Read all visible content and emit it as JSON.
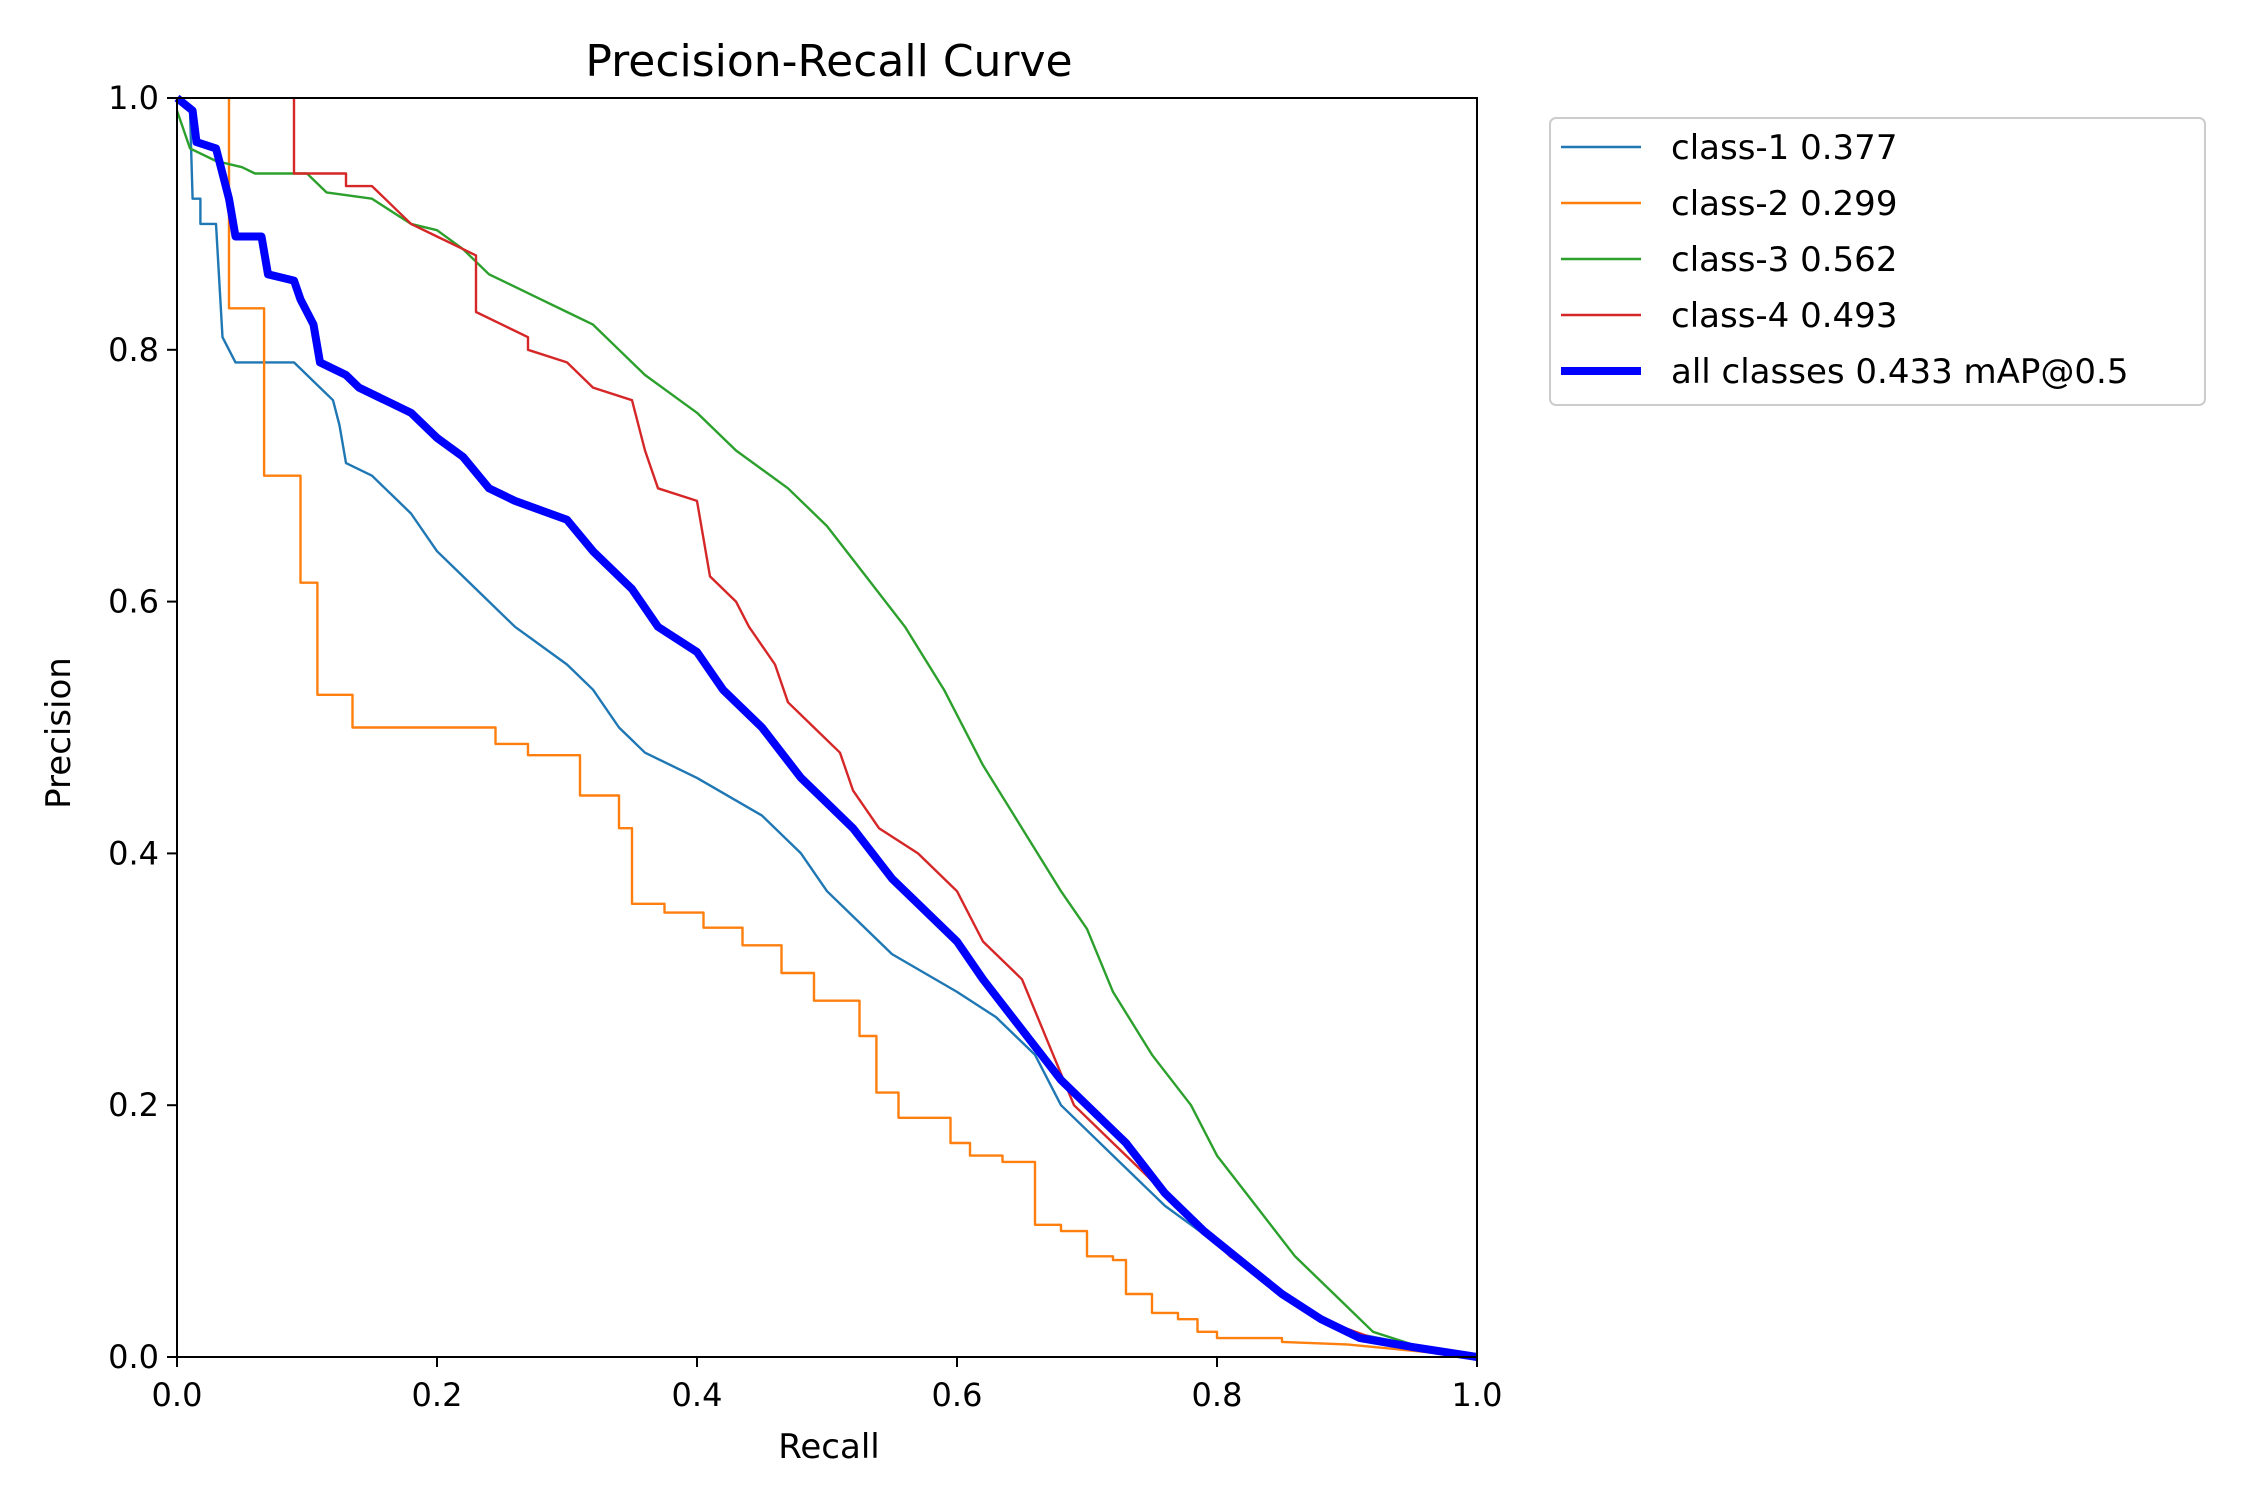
{
  "chart_data": {
    "type": "line",
    "title": "Precision-Recall Curve",
    "xlabel": "Recall",
    "ylabel": "Precision",
    "xlim": [
      0,
      1
    ],
    "ylim": [
      0,
      1
    ],
    "xticks": [
      "0.0",
      "0.2",
      "0.4",
      "0.6",
      "0.8",
      "1.0"
    ],
    "yticks": [
      "0.0",
      "0.2",
      "0.4",
      "0.6",
      "0.8",
      "1.0"
    ],
    "grid": false,
    "legend_position": "outside-top-right",
    "series": [
      {
        "name": "class-1 0.377",
        "color": "#1f77b4",
        "points": [
          [
            0,
            1.0
          ],
          [
            0.01,
            0.99
          ],
          [
            0.012,
            0.92
          ],
          [
            0.018,
            0.92
          ],
          [
            0.018,
            0.9
          ],
          [
            0.03,
            0.9
          ],
          [
            0.035,
            0.81
          ],
          [
            0.045,
            0.79
          ],
          [
            0.09,
            0.79
          ],
          [
            0.1,
            0.78
          ],
          [
            0.11,
            0.77
          ],
          [
            0.12,
            0.76
          ],
          [
            0.125,
            0.74
          ],
          [
            0.13,
            0.71
          ],
          [
            0.15,
            0.7
          ],
          [
            0.16,
            0.69
          ],
          [
            0.17,
            0.68
          ],
          [
            0.18,
            0.67
          ],
          [
            0.2,
            0.64
          ],
          [
            0.22,
            0.62
          ],
          [
            0.24,
            0.6
          ],
          [
            0.26,
            0.58
          ],
          [
            0.3,
            0.55
          ],
          [
            0.32,
            0.53
          ],
          [
            0.34,
            0.5
          ],
          [
            0.36,
            0.48
          ],
          [
            0.4,
            0.46
          ],
          [
            0.45,
            0.43
          ],
          [
            0.48,
            0.4
          ],
          [
            0.5,
            0.37
          ],
          [
            0.52,
            0.35
          ],
          [
            0.55,
            0.32
          ],
          [
            0.6,
            0.29
          ],
          [
            0.63,
            0.27
          ],
          [
            0.66,
            0.24
          ],
          [
            0.68,
            0.2
          ],
          [
            0.72,
            0.16
          ],
          [
            0.76,
            0.12
          ],
          [
            0.8,
            0.09
          ],
          [
            0.85,
            0.05
          ],
          [
            0.9,
            0.02
          ],
          [
            0.95,
            0.01
          ],
          [
            1.0,
            0.0
          ]
        ]
      },
      {
        "name": "class-2 0.299",
        "color": "#ff7f0e",
        "points": [
          [
            0.04,
            1.0
          ],
          [
            0.04,
            0.833
          ],
          [
            0.067,
            0.833
          ],
          [
            0.067,
            0.7
          ],
          [
            0.095,
            0.7
          ],
          [
            0.095,
            0.615
          ],
          [
            0.108,
            0.615
          ],
          [
            0.108,
            0.526
          ],
          [
            0.135,
            0.526
          ],
          [
            0.135,
            0.5
          ],
          [
            0.245,
            0.5
          ],
          [
            0.245,
            0.487
          ],
          [
            0.27,
            0.487
          ],
          [
            0.27,
            0.478
          ],
          [
            0.31,
            0.478
          ],
          [
            0.31,
            0.446
          ],
          [
            0.34,
            0.446
          ],
          [
            0.34,
            0.42
          ],
          [
            0.35,
            0.42
          ],
          [
            0.35,
            0.36
          ],
          [
            0.375,
            0.36
          ],
          [
            0.375,
            0.353
          ],
          [
            0.405,
            0.353
          ],
          [
            0.405,
            0.341
          ],
          [
            0.435,
            0.341
          ],
          [
            0.435,
            0.327
          ],
          [
            0.465,
            0.327
          ],
          [
            0.465,
            0.305
          ],
          [
            0.49,
            0.305
          ],
          [
            0.49,
            0.283
          ],
          [
            0.525,
            0.283
          ],
          [
            0.525,
            0.255
          ],
          [
            0.538,
            0.255
          ],
          [
            0.538,
            0.21
          ],
          [
            0.555,
            0.21
          ],
          [
            0.555,
            0.19
          ],
          [
            0.595,
            0.19
          ],
          [
            0.595,
            0.17
          ],
          [
            0.61,
            0.17
          ],
          [
            0.61,
            0.16
          ],
          [
            0.635,
            0.16
          ],
          [
            0.635,
            0.155
          ],
          [
            0.66,
            0.155
          ],
          [
            0.66,
            0.105
          ],
          [
            0.68,
            0.105
          ],
          [
            0.68,
            0.1
          ],
          [
            0.7,
            0.1
          ],
          [
            0.7,
            0.08
          ],
          [
            0.72,
            0.08
          ],
          [
            0.72,
            0.077
          ],
          [
            0.73,
            0.077
          ],
          [
            0.73,
            0.05
          ],
          [
            0.75,
            0.05
          ],
          [
            0.75,
            0.035
          ],
          [
            0.77,
            0.035
          ],
          [
            0.77,
            0.03
          ],
          [
            0.785,
            0.03
          ],
          [
            0.785,
            0.02
          ],
          [
            0.8,
            0.02
          ],
          [
            0.8,
            0.015
          ],
          [
            0.85,
            0.015
          ],
          [
            0.85,
            0.012
          ],
          [
            0.9,
            0.01
          ],
          [
            0.95,
            0.005
          ],
          [
            1.0,
            0.0
          ]
        ]
      },
      {
        "name": "class-3 0.562",
        "color": "#2ca02c",
        "points": [
          [
            0,
            0.99
          ],
          [
            0.01,
            0.96
          ],
          [
            0.03,
            0.95
          ],
          [
            0.05,
            0.945
          ],
          [
            0.06,
            0.94
          ],
          [
            0.1,
            0.94
          ],
          [
            0.115,
            0.925
          ],
          [
            0.15,
            0.92
          ],
          [
            0.18,
            0.9
          ],
          [
            0.2,
            0.895
          ],
          [
            0.22,
            0.88
          ],
          [
            0.24,
            0.86
          ],
          [
            0.28,
            0.84
          ],
          [
            0.3,
            0.83
          ],
          [
            0.32,
            0.82
          ],
          [
            0.34,
            0.8
          ],
          [
            0.36,
            0.78
          ],
          [
            0.4,
            0.75
          ],
          [
            0.43,
            0.72
          ],
          [
            0.47,
            0.69
          ],
          [
            0.5,
            0.66
          ],
          [
            0.53,
            0.62
          ],
          [
            0.56,
            0.58
          ],
          [
            0.59,
            0.53
          ],
          [
            0.62,
            0.47
          ],
          [
            0.65,
            0.42
          ],
          [
            0.68,
            0.37
          ],
          [
            0.7,
            0.34
          ],
          [
            0.72,
            0.29
          ],
          [
            0.75,
            0.24
          ],
          [
            0.78,
            0.2
          ],
          [
            0.8,
            0.16
          ],
          [
            0.83,
            0.12
          ],
          [
            0.86,
            0.08
          ],
          [
            0.89,
            0.05
          ],
          [
            0.92,
            0.02
          ],
          [
            0.95,
            0.01
          ],
          [
            1.0,
            0.0
          ]
        ]
      },
      {
        "name": "class-4 0.493",
        "color": "#d62728",
        "points": [
          [
            0.09,
            1.0
          ],
          [
            0.09,
            0.94
          ],
          [
            0.13,
            0.94
          ],
          [
            0.13,
            0.93
          ],
          [
            0.15,
            0.93
          ],
          [
            0.16,
            0.92
          ],
          [
            0.17,
            0.91
          ],
          [
            0.18,
            0.9
          ],
          [
            0.2,
            0.89
          ],
          [
            0.22,
            0.88
          ],
          [
            0.23,
            0.875
          ],
          [
            0.23,
            0.83
          ],
          [
            0.25,
            0.82
          ],
          [
            0.27,
            0.81
          ],
          [
            0.27,
            0.8
          ],
          [
            0.3,
            0.79
          ],
          [
            0.32,
            0.77
          ],
          [
            0.35,
            0.76
          ],
          [
            0.36,
            0.72
          ],
          [
            0.37,
            0.69
          ],
          [
            0.4,
            0.68
          ],
          [
            0.41,
            0.62
          ],
          [
            0.43,
            0.6
          ],
          [
            0.44,
            0.58
          ],
          [
            0.46,
            0.55
          ],
          [
            0.47,
            0.52
          ],
          [
            0.49,
            0.5
          ],
          [
            0.51,
            0.48
          ],
          [
            0.52,
            0.45
          ],
          [
            0.54,
            0.42
          ],
          [
            0.57,
            0.4
          ],
          [
            0.6,
            0.37
          ],
          [
            0.62,
            0.33
          ],
          [
            0.65,
            0.3
          ],
          [
            0.67,
            0.25
          ],
          [
            0.69,
            0.2
          ],
          [
            0.72,
            0.17
          ],
          [
            0.75,
            0.14
          ],
          [
            0.78,
            0.11
          ],
          [
            0.81,
            0.08
          ],
          [
            0.85,
            0.05
          ],
          [
            0.88,
            0.03
          ],
          [
            0.92,
            0.015
          ],
          [
            0.96,
            0.005
          ],
          [
            1.0,
            0.0
          ]
        ]
      },
      {
        "name": "all classes 0.433 mAP@0.5",
        "color": "#0000ff",
        "thick": true,
        "points": [
          [
            0,
            1.0
          ],
          [
            0.012,
            0.99
          ],
          [
            0.015,
            0.965
          ],
          [
            0.03,
            0.96
          ],
          [
            0.035,
            0.94
          ],
          [
            0.04,
            0.92
          ],
          [
            0.045,
            0.89
          ],
          [
            0.065,
            0.89
          ],
          [
            0.07,
            0.86
          ],
          [
            0.09,
            0.855
          ],
          [
            0.095,
            0.84
          ],
          [
            0.105,
            0.82
          ],
          [
            0.11,
            0.79
          ],
          [
            0.13,
            0.78
          ],
          [
            0.14,
            0.77
          ],
          [
            0.16,
            0.76
          ],
          [
            0.18,
            0.75
          ],
          [
            0.2,
            0.73
          ],
          [
            0.22,
            0.715
          ],
          [
            0.24,
            0.69
          ],
          [
            0.26,
            0.68
          ],
          [
            0.3,
            0.665
          ],
          [
            0.32,
            0.64
          ],
          [
            0.35,
            0.61
          ],
          [
            0.37,
            0.58
          ],
          [
            0.4,
            0.56
          ],
          [
            0.42,
            0.53
          ],
          [
            0.45,
            0.5
          ],
          [
            0.48,
            0.46
          ],
          [
            0.5,
            0.44
          ],
          [
            0.52,
            0.42
          ],
          [
            0.55,
            0.38
          ],
          [
            0.57,
            0.36
          ],
          [
            0.6,
            0.33
          ],
          [
            0.62,
            0.3
          ],
          [
            0.65,
            0.26
          ],
          [
            0.68,
            0.22
          ],
          [
            0.7,
            0.2
          ],
          [
            0.73,
            0.17
          ],
          [
            0.76,
            0.13
          ],
          [
            0.79,
            0.1
          ],
          [
            0.82,
            0.075
          ],
          [
            0.85,
            0.05
          ],
          [
            0.88,
            0.03
          ],
          [
            0.91,
            0.015
          ],
          [
            0.95,
            0.008
          ],
          [
            1.0,
            0.0
          ]
        ]
      }
    ]
  }
}
